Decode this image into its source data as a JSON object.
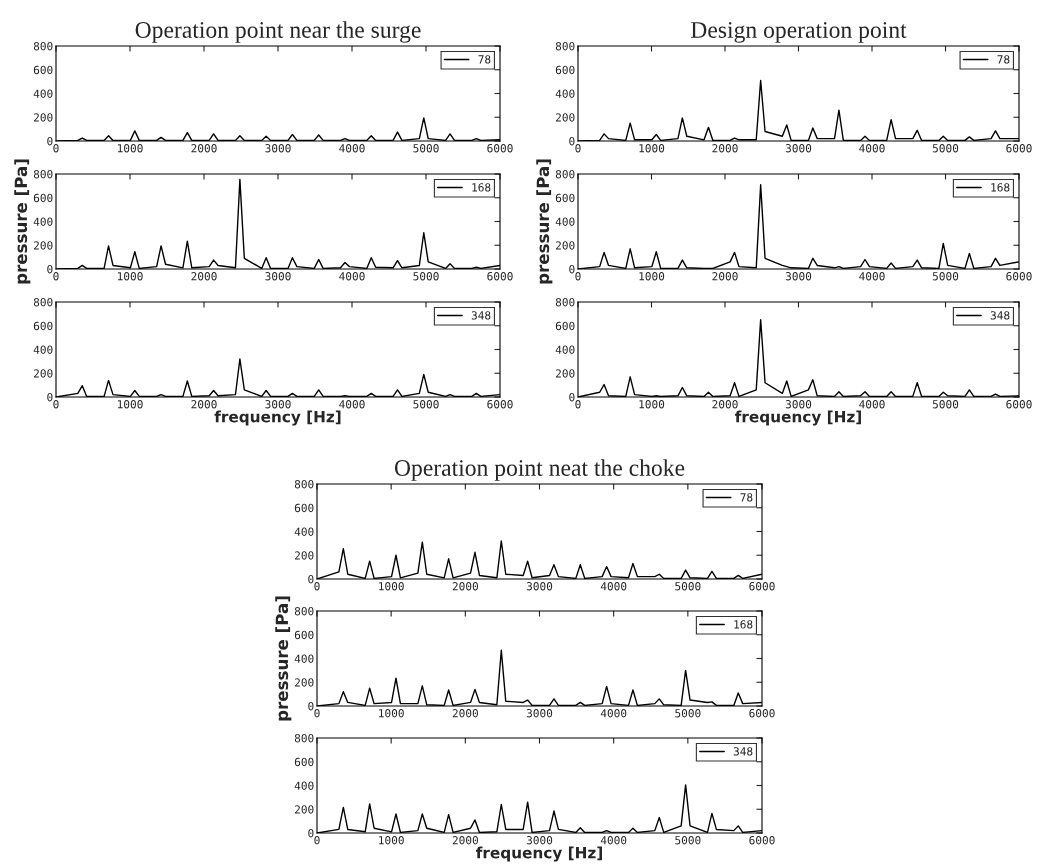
{
  "chart_data": [
    {
      "type": "line",
      "title": "Operation point near the surge",
      "xlim": [
        0,
        6000
      ],
      "ylim": [
        0,
        800
      ],
      "xticks": [
        0,
        1000,
        2000,
        3000,
        4000,
        5000,
        6000
      ],
      "yticks": [
        0,
        200,
        400,
        600,
        800
      ],
      "legend": "top right",
      "x": [
        0,
        295,
        355,
        415,
        650,
        710,
        770,
        1005,
        1065,
        1125,
        1360,
        1420,
        1480,
        1715,
        1775,
        1835,
        2070,
        2130,
        2190,
        2425,
        2485,
        2545,
        2780,
        2840,
        2900,
        3135,
        3195,
        3255,
        3490,
        3550,
        3610,
        3845,
        3905,
        3965,
        4200,
        4260,
        4320,
        4555,
        4615,
        4675,
        4910,
        4970,
        5030,
        5265,
        5325,
        5385,
        5620,
        5680,
        5740,
        6000
      ],
      "series": [
        {
          "name": "78",
          "color": "#000000",
          "values": [
            0,
            5,
            25,
            5,
            5,
            45,
            5,
            5,
            85,
            5,
            5,
            30,
            5,
            5,
            70,
            5,
            5,
            60,
            5,
            5,
            45,
            5,
            5,
            40,
            5,
            5,
            55,
            5,
            5,
            50,
            5,
            5,
            20,
            5,
            5,
            45,
            5,
            5,
            75,
            5,
            20,
            195,
            20,
            5,
            60,
            5,
            5,
            20,
            5,
            10
          ]
        }
      ]
    },
    {
      "type": "line",
      "ylabel": "pressure [Pa]",
      "xlim": [
        0,
        6000
      ],
      "ylim": [
        0,
        800
      ],
      "xticks": [
        0,
        1000,
        2000,
        3000,
        4000,
        5000,
        6000
      ],
      "yticks": [
        0,
        200,
        400,
        600,
        800
      ],
      "legend": "top right",
      "x": [
        0,
        295,
        355,
        415,
        650,
        710,
        770,
        1005,
        1065,
        1125,
        1360,
        1420,
        1480,
        1715,
        1775,
        1835,
        2070,
        2130,
        2190,
        2425,
        2485,
        2545,
        2780,
        2840,
        2900,
        3135,
        3195,
        3255,
        3490,
        3550,
        3610,
        3845,
        3905,
        3965,
        4200,
        4260,
        4320,
        4555,
        4615,
        4675,
        4910,
        4970,
        5030,
        5265,
        5325,
        5385,
        5620,
        5680,
        5740,
        6000
      ],
      "series": [
        {
          "name": "168",
          "color": "#000000",
          "values": [
            0,
            5,
            30,
            5,
            5,
            195,
            30,
            10,
            145,
            5,
            20,
            195,
            40,
            10,
            235,
            10,
            20,
            75,
            30,
            10,
            755,
            90,
            5,
            95,
            5,
            5,
            95,
            20,
            5,
            80,
            5,
            10,
            55,
            20,
            5,
            95,
            15,
            10,
            70,
            10,
            30,
            305,
            60,
            5,
            45,
            5,
            5,
            15,
            5,
            30
          ]
        }
      ]
    },
    {
      "type": "line",
      "xlabel": "frequency [Hz]",
      "xlim": [
        0,
        6000
      ],
      "ylim": [
        0,
        800
      ],
      "xticks": [
        0,
        1000,
        2000,
        3000,
        4000,
        5000,
        6000
      ],
      "yticks": [
        0,
        200,
        400,
        600,
        800
      ],
      "legend": "top right",
      "x": [
        0,
        295,
        355,
        415,
        650,
        710,
        770,
        1005,
        1065,
        1125,
        1360,
        1420,
        1480,
        1715,
        1775,
        1835,
        2070,
        2130,
        2190,
        2425,
        2485,
        2545,
        2780,
        2840,
        2900,
        3135,
        3195,
        3255,
        3490,
        3550,
        3610,
        3845,
        3905,
        3965,
        4200,
        4260,
        4320,
        4555,
        4615,
        4675,
        4910,
        4970,
        5030,
        5265,
        5325,
        5385,
        5620,
        5680,
        5740,
        6000
      ],
      "series": [
        {
          "name": "348",
          "color": "#000000",
          "values": [
            0,
            30,
            95,
            5,
            5,
            140,
            20,
            5,
            55,
            5,
            5,
            20,
            5,
            5,
            135,
            5,
            10,
            55,
            10,
            20,
            320,
            60,
            5,
            55,
            5,
            5,
            30,
            5,
            5,
            60,
            5,
            5,
            10,
            5,
            5,
            30,
            5,
            5,
            60,
            5,
            30,
            190,
            40,
            5,
            20,
            5,
            5,
            30,
            5,
            20
          ]
        }
      ]
    },
    {
      "type": "line",
      "title": "Design operation point",
      "xlim": [
        0,
        6000
      ],
      "ylim": [
        0,
        800
      ],
      "xticks": [
        0,
        1000,
        2000,
        3000,
        4000,
        5000,
        6000
      ],
      "yticks": [
        0,
        200,
        400,
        600,
        800
      ],
      "legend": "top right",
      "x": [
        0,
        295,
        355,
        415,
        650,
        710,
        770,
        1005,
        1065,
        1125,
        1360,
        1420,
        1480,
        1715,
        1775,
        1835,
        2070,
        2130,
        2190,
        2425,
        2485,
        2545,
        2780,
        2840,
        2900,
        3135,
        3195,
        3255,
        3490,
        3550,
        3610,
        3845,
        3905,
        3965,
        4200,
        4260,
        4320,
        4555,
        4615,
        4675,
        4910,
        4970,
        5030,
        5265,
        5325,
        5385,
        5620,
        5680,
        5740,
        6000
      ],
      "series": [
        {
          "name": "78",
          "color": "#000000",
          "values": [
            0,
            5,
            60,
            20,
            5,
            150,
            10,
            10,
            55,
            5,
            20,
            195,
            40,
            10,
            115,
            5,
            5,
            25,
            10,
            10,
            510,
            80,
            40,
            135,
            5,
            5,
            110,
            20,
            20,
            260,
            5,
            5,
            40,
            5,
            5,
            180,
            20,
            20,
            90,
            5,
            5,
            40,
            5,
            5,
            35,
            5,
            20,
            85,
            20,
            20
          ]
        }
      ]
    },
    {
      "type": "line",
      "ylabel": "pressure [Pa]",
      "xlim": [
        0,
        6000
      ],
      "ylim": [
        0,
        800
      ],
      "xticks": [
        0,
        1000,
        2000,
        3000,
        4000,
        5000,
        6000
      ],
      "yticks": [
        0,
        200,
        400,
        600,
        800
      ],
      "legend": "top right",
      "x": [
        0,
        295,
        355,
        415,
        650,
        710,
        770,
        1005,
        1065,
        1125,
        1360,
        1420,
        1480,
        1715,
        1775,
        1835,
        2070,
        2130,
        2190,
        2425,
        2485,
        2545,
        2780,
        2840,
        2900,
        3135,
        3195,
        3255,
        3490,
        3550,
        3610,
        3845,
        3905,
        3965,
        4200,
        4260,
        4320,
        4555,
        4615,
        4675,
        4910,
        4970,
        5030,
        5265,
        5325,
        5385,
        5620,
        5680,
        5740,
        6000
      ],
      "series": [
        {
          "name": "168",
          "color": "#000000",
          "values": [
            0,
            20,
            140,
            30,
            5,
            170,
            10,
            20,
            145,
            5,
            5,
            75,
            10,
            5,
            5,
            5,
            60,
            140,
            20,
            10,
            710,
            90,
            30,
            20,
            10,
            5,
            90,
            30,
            10,
            20,
            5,
            20,
            80,
            20,
            5,
            50,
            5,
            20,
            75,
            10,
            5,
            215,
            30,
            5,
            130,
            5,
            20,
            90,
            30,
            60
          ]
        }
      ]
    },
    {
      "type": "line",
      "xlabel": "frequency [Hz]",
      "xlim": [
        0,
        6000
      ],
      "ylim": [
        0,
        800
      ],
      "xticks": [
        0,
        1000,
        2000,
        3000,
        4000,
        5000,
        6000
      ],
      "yticks": [
        0,
        200,
        400,
        600,
        800
      ],
      "legend": "top right",
      "x": [
        0,
        295,
        355,
        415,
        650,
        710,
        770,
        1005,
        1065,
        1125,
        1360,
        1420,
        1480,
        1715,
        1775,
        1835,
        2070,
        2130,
        2190,
        2425,
        2485,
        2545,
        2780,
        2840,
        2900,
        3135,
        3195,
        3255,
        3490,
        3550,
        3610,
        3845,
        3905,
        3965,
        4200,
        4260,
        4320,
        4555,
        4615,
        4675,
        4910,
        4970,
        5030,
        5265,
        5325,
        5385,
        5620,
        5680,
        5740,
        6000
      ],
      "series": [
        {
          "name": "348",
          "color": "#000000",
          "values": [
            0,
            40,
            105,
            10,
            5,
            170,
            20,
            5,
            10,
            5,
            10,
            80,
            10,
            5,
            40,
            5,
            10,
            120,
            5,
            60,
            650,
            120,
            30,
            135,
            5,
            60,
            145,
            10,
            5,
            45,
            5,
            10,
            45,
            5,
            5,
            45,
            5,
            5,
            120,
            5,
            5,
            40,
            10,
            5,
            60,
            5,
            5,
            25,
            5,
            10
          ]
        }
      ]
    },
    {
      "type": "line",
      "title": "Operation point neat the choke",
      "xlim": [
        0,
        6000
      ],
      "ylim": [
        0,
        800
      ],
      "xticks": [
        0,
        1000,
        2000,
        3000,
        4000,
        5000,
        6000
      ],
      "yticks": [
        0,
        200,
        400,
        600,
        800
      ],
      "legend": "top right",
      "x": [
        0,
        295,
        355,
        415,
        650,
        710,
        770,
        1005,
        1065,
        1125,
        1360,
        1420,
        1480,
        1715,
        1775,
        1835,
        2070,
        2130,
        2190,
        2425,
        2485,
        2545,
        2780,
        2840,
        2900,
        3135,
        3195,
        3255,
        3490,
        3550,
        3610,
        3845,
        3905,
        3965,
        4200,
        4260,
        4320,
        4555,
        4615,
        4675,
        4910,
        4970,
        5030,
        5265,
        5325,
        5385,
        5620,
        5680,
        5740,
        6000
      ],
      "series": [
        {
          "name": "78",
          "color": "#000000",
          "values": [
            0,
            60,
            255,
            40,
            5,
            150,
            5,
            20,
            200,
            10,
            50,
            310,
            40,
            10,
            170,
            10,
            50,
            225,
            30,
            10,
            320,
            40,
            30,
            150,
            10,
            30,
            120,
            20,
            5,
            120,
            5,
            20,
            105,
            20,
            10,
            130,
            20,
            20,
            40,
            5,
            5,
            75,
            10,
            5,
            65,
            5,
            5,
            30,
            5,
            40
          ]
        }
      ]
    },
    {
      "type": "line",
      "ylabel": "pressure [Pa]",
      "xlim": [
        0,
        6000
      ],
      "ylim": [
        0,
        800
      ],
      "xticks": [
        0,
        1000,
        2000,
        3000,
        4000,
        5000,
        6000
      ],
      "yticks": [
        0,
        200,
        400,
        600,
        800
      ],
      "legend": "top right",
      "x": [
        0,
        295,
        355,
        415,
        650,
        710,
        770,
        1005,
        1065,
        1125,
        1360,
        1420,
        1480,
        1715,
        1775,
        1835,
        2070,
        2130,
        2190,
        2425,
        2485,
        2545,
        2780,
        2840,
        2900,
        3135,
        3195,
        3255,
        3490,
        3550,
        3610,
        3845,
        3905,
        3965,
        4200,
        4260,
        4320,
        4555,
        4615,
        4675,
        4910,
        4970,
        5030,
        5265,
        5325,
        5385,
        5620,
        5680,
        5740,
        6000
      ],
      "series": [
        {
          "name": "168",
          "color": "#000000",
          "values": [
            0,
            20,
            120,
            30,
            5,
            150,
            20,
            30,
            235,
            20,
            20,
            170,
            10,
            5,
            135,
            5,
            30,
            140,
            30,
            10,
            470,
            40,
            30,
            50,
            5,
            5,
            60,
            5,
            5,
            30,
            5,
            20,
            165,
            20,
            5,
            135,
            5,
            20,
            60,
            10,
            5,
            300,
            50,
            30,
            35,
            5,
            5,
            110,
            20,
            30
          ]
        }
      ]
    },
    {
      "type": "line",
      "xlabel": "frequency [Hz]",
      "xlim": [
        0,
        6000
      ],
      "ylim": [
        0,
        800
      ],
      "xticks": [
        0,
        1000,
        2000,
        3000,
        4000,
        5000,
        6000
      ],
      "yticks": [
        0,
        200,
        400,
        600,
        800
      ],
      "legend": "top right",
      "x": [
        0,
        295,
        355,
        415,
        650,
        710,
        770,
        1005,
        1065,
        1125,
        1360,
        1420,
        1480,
        1715,
        1775,
        1835,
        2070,
        2130,
        2190,
        2425,
        2485,
        2545,
        2780,
        2840,
        2900,
        3135,
        3195,
        3255,
        3490,
        3550,
        3610,
        3845,
        3905,
        3965,
        4200,
        4260,
        4320,
        4555,
        4615,
        4675,
        4910,
        4970,
        5030,
        5265,
        5325,
        5385,
        5620,
        5680,
        5740,
        6000
      ],
      "series": [
        {
          "name": "348",
          "color": "#000000",
          "values": [
            0,
            30,
            215,
            30,
            10,
            245,
            40,
            10,
            160,
            5,
            20,
            160,
            40,
            5,
            155,
            5,
            40,
            110,
            5,
            10,
            240,
            30,
            30,
            260,
            5,
            20,
            185,
            30,
            5,
            45,
            5,
            5,
            20,
            5,
            5,
            40,
            5,
            20,
            130,
            5,
            60,
            405,
            60,
            5,
            165,
            30,
            20,
            60,
            5,
            20
          ]
        }
      ]
    }
  ]
}
